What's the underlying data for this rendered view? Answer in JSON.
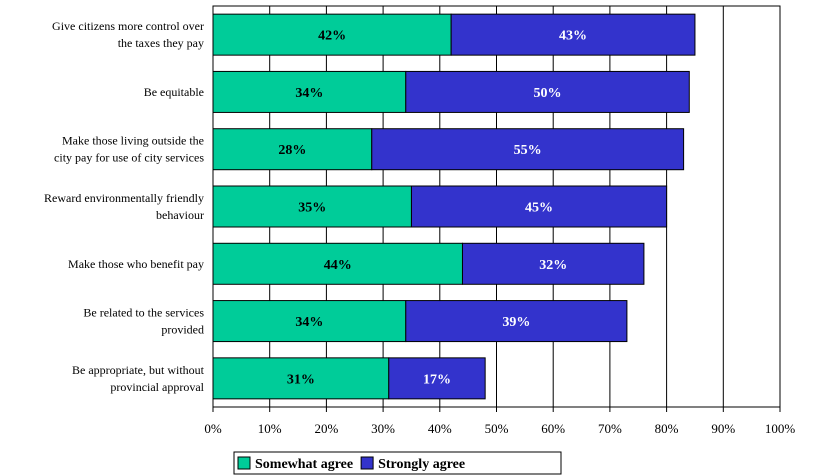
{
  "chart_data": {
    "type": "bar",
    "orientation": "horizontal",
    "stacked": true,
    "categories": [
      [
        "Give citizens more control over",
        "the taxes they pay"
      ],
      [
        "Be equitable"
      ],
      [
        "Make those living outside the",
        "city pay for use of city services"
      ],
      [
        "Reward environmentally friendly",
        "behaviour"
      ],
      [
        "Make those who benefit pay"
      ],
      [
        "Be related to the services",
        "provided"
      ],
      [
        "Be appropriate, but without",
        "provincial approval"
      ]
    ],
    "series": [
      {
        "name": "Somewhat agree",
        "color": "#00CC99",
        "label_color": "#000000",
        "values": [
          42,
          34,
          28,
          35,
          44,
          34,
          31
        ]
      },
      {
        "name": "Strongly agree",
        "color": "#3333CC",
        "label_color": "#FFFFFF",
        "values": [
          43,
          50,
          55,
          45,
          32,
          39,
          17
        ]
      }
    ],
    "x_ticks": [
      "0%",
      "10%",
      "20%",
      "30%",
      "40%",
      "50%",
      "60%",
      "70%",
      "80%",
      "90%",
      "100%"
    ],
    "xlim": [
      0,
      100
    ],
    "grid": "vertical",
    "legend_position": "bottom",
    "title": "",
    "xlabel": "",
    "ylabel": ""
  }
}
